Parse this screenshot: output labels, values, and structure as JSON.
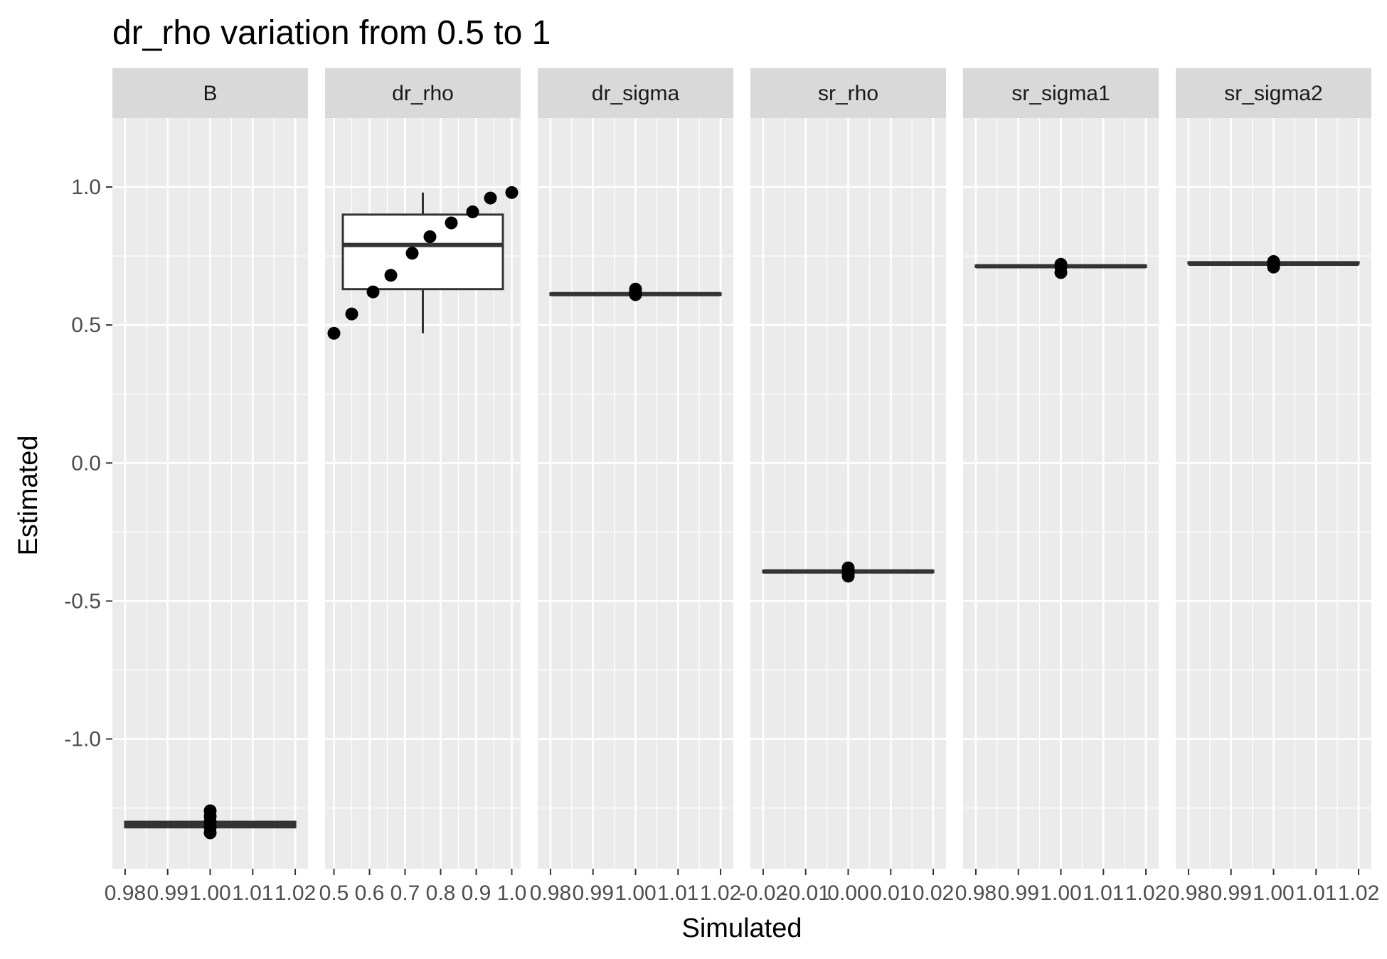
{
  "chart_data": {
    "type": "box",
    "title": "dr_rho  variation from  0.5  to  1",
    "xlabel": "Simulated",
    "ylabel": "Estimated",
    "ylim": [
      -1.47,
      1.25
    ],
    "y_ticks": [
      1.0,
      0.5,
      0.0,
      -0.5,
      -1.0
    ],
    "y_tick_labels": [
      "1.0",
      "0.5",
      "0.0",
      "-0.5",
      "-1.0"
    ],
    "grid": true,
    "panels": [
      {
        "strip": "B",
        "xlim": [
          0.977,
          1.023
        ],
        "x_ticks": [
          0.98,
          0.99,
          1.0,
          1.01,
          1.02
        ],
        "x_tick_labels": [
          "0.98",
          "0.99",
          "1.00",
          "1.01",
          "1.02"
        ],
        "box": {
          "x_min": 0.98,
          "x_max": 1.02,
          "lower": -1.32,
          "median": -1.31,
          "upper": -1.3
        },
        "points": [
          {
            "x": 1.0,
            "y": -1.26
          },
          {
            "x": 1.0,
            "y": -1.28
          },
          {
            "x": 1.0,
            "y": -1.3
          },
          {
            "x": 1.0,
            "y": -1.32
          },
          {
            "x": 1.0,
            "y": -1.34
          }
        ]
      },
      {
        "strip": "dr_rho",
        "xlim": [
          0.475,
          1.025
        ],
        "x_ticks": [
          0.5,
          0.6,
          0.7,
          0.8,
          0.9,
          1.0
        ],
        "x_tick_labels": [
          "0.5",
          "0.6",
          "0.7",
          "0.8",
          "0.9",
          "1.0"
        ],
        "box": {
          "x_min": 0.525,
          "x_max": 0.975,
          "lower": 0.63,
          "median": 0.79,
          "upper": 0.9,
          "whisker_low": 0.47,
          "whisker_high": 0.98,
          "whisker_x": 0.75
        },
        "points": [
          {
            "x": 0.5,
            "y": 0.47
          },
          {
            "x": 0.55,
            "y": 0.54
          },
          {
            "x": 0.61,
            "y": 0.62
          },
          {
            "x": 0.66,
            "y": 0.68
          },
          {
            "x": 0.72,
            "y": 0.76
          },
          {
            "x": 0.77,
            "y": 0.82
          },
          {
            "x": 0.83,
            "y": 0.87
          },
          {
            "x": 0.89,
            "y": 0.91
          },
          {
            "x": 0.94,
            "y": 0.96
          },
          {
            "x": 1.0,
            "y": 0.98
          }
        ]
      },
      {
        "strip": "dr_sigma",
        "xlim": [
          0.977,
          1.023
        ],
        "x_ticks": [
          0.98,
          0.99,
          1.0,
          1.01,
          1.02
        ],
        "x_tick_labels": [
          "0.98",
          "0.99",
          "1.00",
          "1.01",
          "1.02"
        ],
        "box": {
          "x_min": 0.98,
          "x_max": 1.02,
          "lower": 0.612,
          "median": 0.612,
          "upper": 0.612
        },
        "points": [
          {
            "x": 1.0,
            "y": 0.63
          },
          {
            "x": 1.0,
            "y": 0.62
          },
          {
            "x": 1.0,
            "y": 0.61
          }
        ]
      },
      {
        "strip": "sr_rho",
        "xlim": [
          -0.023,
          0.023
        ],
        "x_ticks": [
          -0.02,
          -0.01,
          0.0,
          0.01,
          0.02
        ],
        "x_tick_labels": [
          "-0.02",
          "-0.01",
          "0.00",
          "0.01",
          "0.02"
        ],
        "box": {
          "x_min": -0.02,
          "x_max": 0.02,
          "lower": -0.393,
          "median": -0.393,
          "upper": -0.393
        },
        "points": [
          {
            "x": 0.0,
            "y": -0.38
          },
          {
            "x": 0.0,
            "y": -0.39
          },
          {
            "x": 0.0,
            "y": -0.4
          },
          {
            "x": 0.0,
            "y": -0.41
          }
        ]
      },
      {
        "strip": "sr_sigma1",
        "xlim": [
          0.977,
          1.023
        ],
        "x_ticks": [
          0.98,
          0.99,
          1.0,
          1.01,
          1.02
        ],
        "x_tick_labels": [
          "0.98",
          "0.99",
          "1.00",
          "1.01",
          "1.02"
        ],
        "box": {
          "x_min": 0.98,
          "x_max": 1.02,
          "lower": 0.713,
          "median": 0.713,
          "upper": 0.713
        },
        "points": [
          {
            "x": 1.0,
            "y": 0.72
          },
          {
            "x": 1.0,
            "y": 0.71
          },
          {
            "x": 1.0,
            "y": 0.69
          }
        ]
      },
      {
        "strip": "sr_sigma2",
        "xlim": [
          0.977,
          1.023
        ],
        "x_ticks": [
          0.98,
          0.99,
          1.0,
          1.01,
          1.02
        ],
        "x_tick_labels": [
          "0.98",
          "0.99",
          "1.00",
          "1.01",
          "1.02"
        ],
        "box": {
          "x_min": 0.98,
          "x_max": 1.02,
          "lower": 0.72,
          "median": 0.722,
          "upper": 0.725
        },
        "points": [
          {
            "x": 1.0,
            "y": 0.73
          },
          {
            "x": 1.0,
            "y": 0.72
          },
          {
            "x": 1.0,
            "y": 0.71
          }
        ]
      }
    ],
    "colors": {
      "panel_bg": "#ebebeb",
      "strip_bg": "#d9d9d9",
      "grid": "#ffffff",
      "box_line": "#333333",
      "box_fill": "#ffffff",
      "point": "#000000",
      "tick_text": "#4d4d4d"
    }
  }
}
